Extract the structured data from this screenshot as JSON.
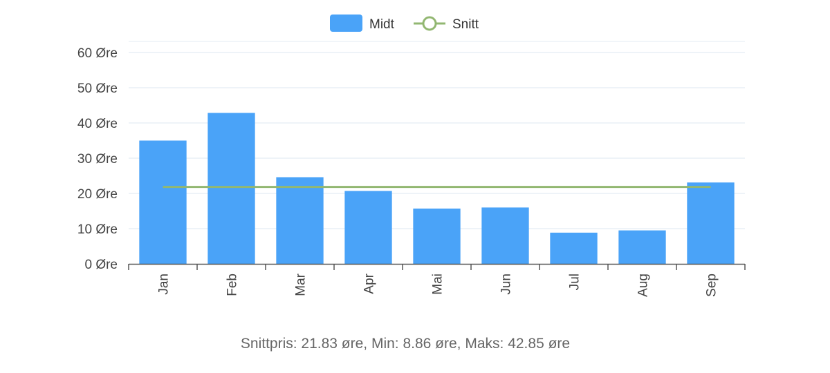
{
  "chart_data": {
    "type": "bar",
    "categories": [
      "Jan",
      "Feb",
      "Mar",
      "Apr",
      "Mai",
      "Jun",
      "Jul",
      "Aug",
      "Sep"
    ],
    "series": [
      {
        "name": "Midt",
        "type": "bar",
        "color": "#4aa3f8",
        "values": [
          35.0,
          42.85,
          24.6,
          20.7,
          15.7,
          16.0,
          8.86,
          9.5,
          23.1
        ]
      },
      {
        "name": "Snitt",
        "type": "line",
        "color": "#92b771",
        "values": [
          21.83,
          21.83,
          21.83,
          21.83,
          21.83,
          21.83,
          21.83,
          21.83,
          21.83
        ]
      }
    ],
    "y_ticks": [
      "0 Øre",
      "10 Øre",
      "20 Øre",
      "30 Øre",
      "40 Øre",
      "50 Øre",
      "60 Øre"
    ],
    "ylim": [
      0,
      60
    ],
    "y_step": 10,
    "grid": true,
    "legend_position": "top-center",
    "title": "",
    "xlabel": "",
    "ylabel": ""
  },
  "summary": "Snittpris: 21.83 øre, Min: 8.86 øre, Maks: 42.85 øre"
}
